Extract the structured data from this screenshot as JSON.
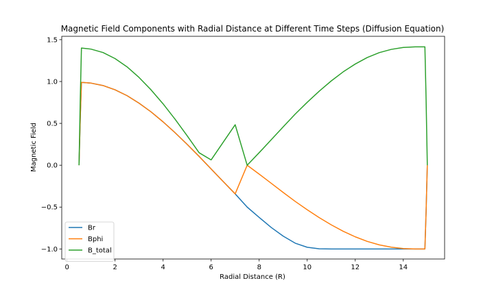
{
  "chart_data": {
    "type": "line",
    "title": "Magnetic Field Components with Radial Distance at Different Time Steps (Diffusion Equation)",
    "xlabel": "Radial Distance (R)",
    "ylabel": "Magnetic Field",
    "xlim": [
      -0.22,
      15.72
    ],
    "ylim": [
      -1.12,
      1.54
    ],
    "xticks": [
      0,
      2,
      4,
      6,
      8,
      10,
      12,
      14
    ],
    "yticks": [
      1.5,
      1.0,
      0.5,
      0.0,
      -0.5,
      -1.0
    ],
    "xtick_labels": [
      "0",
      "2",
      "4",
      "6",
      "8",
      "10",
      "12",
      "14"
    ],
    "ytick_labels": [
      "1.5",
      "1.0",
      "0.5",
      "0.0",
      "−0.5",
      "−1.0"
    ],
    "grid": false,
    "legend_position": "lower-left",
    "series": [
      {
        "name": "Br",
        "color": "#1f77b4",
        "x": [
          0.5,
          0.55,
          0.6,
          1,
          1.5,
          2,
          2.5,
          3,
          3.5,
          4,
          4.5,
          5,
          5.5,
          6,
          6.5,
          7,
          7.5,
          8,
          8.5,
          9,
          9.5,
          10,
          10.5,
          11,
          11.5,
          12,
          12.5,
          13,
          13.5,
          14,
          14.5,
          14.9,
          14.95,
          15.0
        ],
        "y": [
          0.0,
          0.55,
          0.99,
          0.981,
          0.952,
          0.901,
          0.831,
          0.741,
          0.637,
          0.518,
          0.388,
          0.25,
          0.105,
          -0.045,
          -0.194,
          -0.342,
          -0.5,
          -0.623,
          -0.743,
          -0.847,
          -0.931,
          -0.98,
          -0.998,
          -1.0,
          -1.0,
          -1.0,
          -1.0,
          -1.0,
          -1.0,
          -1.0,
          -1.0,
          -1.0,
          -0.55,
          0.0
        ]
      },
      {
        "name": "Bphi",
        "color": "#ff7f0e",
        "x": [
          0.5,
          0.55,
          0.6,
          1,
          1.5,
          2,
          2.5,
          3,
          3.5,
          4,
          4.5,
          5,
          5.5,
          6,
          6.5,
          7,
          7.5,
          8,
          8.5,
          9,
          9.5,
          10,
          10.5,
          11,
          11.5,
          12,
          12.5,
          13,
          13.5,
          14,
          14.5,
          14.9,
          14.95,
          15.0
        ],
        "y": [
          0.0,
          0.55,
          0.99,
          0.981,
          0.952,
          0.901,
          0.831,
          0.741,
          0.637,
          0.518,
          0.388,
          0.25,
          0.105,
          -0.045,
          -0.194,
          -0.342,
          0.0,
          -0.106,
          -0.215,
          -0.325,
          -0.432,
          -0.532,
          -0.626,
          -0.712,
          -0.789,
          -0.855,
          -0.91,
          -0.951,
          -0.979,
          -0.995,
          -1.0,
          -1.0,
          -0.55,
          0.0
        ]
      },
      {
        "name": "B_total",
        "color": "#2ca02c",
        "x": [
          0.5,
          0.55,
          0.6,
          1,
          1.5,
          2,
          2.5,
          3,
          3.5,
          4,
          4.5,
          5,
          5.5,
          6,
          6.5,
          7,
          7.5,
          8,
          8.5,
          9,
          9.5,
          10,
          10.5,
          11,
          11.5,
          12,
          12.5,
          13,
          13.5,
          14,
          14.5,
          14.9,
          14.95,
          15.0
        ],
        "y": [
          0.0,
          0.78,
          1.4,
          1.387,
          1.346,
          1.274,
          1.175,
          1.048,
          0.9,
          0.733,
          0.549,
          0.353,
          0.149,
          0.064,
          0.274,
          0.484,
          0.0,
          0.15,
          0.304,
          0.459,
          0.611,
          0.752,
          0.885,
          1.007,
          1.116,
          1.209,
          1.287,
          1.345,
          1.384,
          1.407,
          1.414,
          1.414,
          0.78,
          0.0
        ]
      }
    ]
  }
}
